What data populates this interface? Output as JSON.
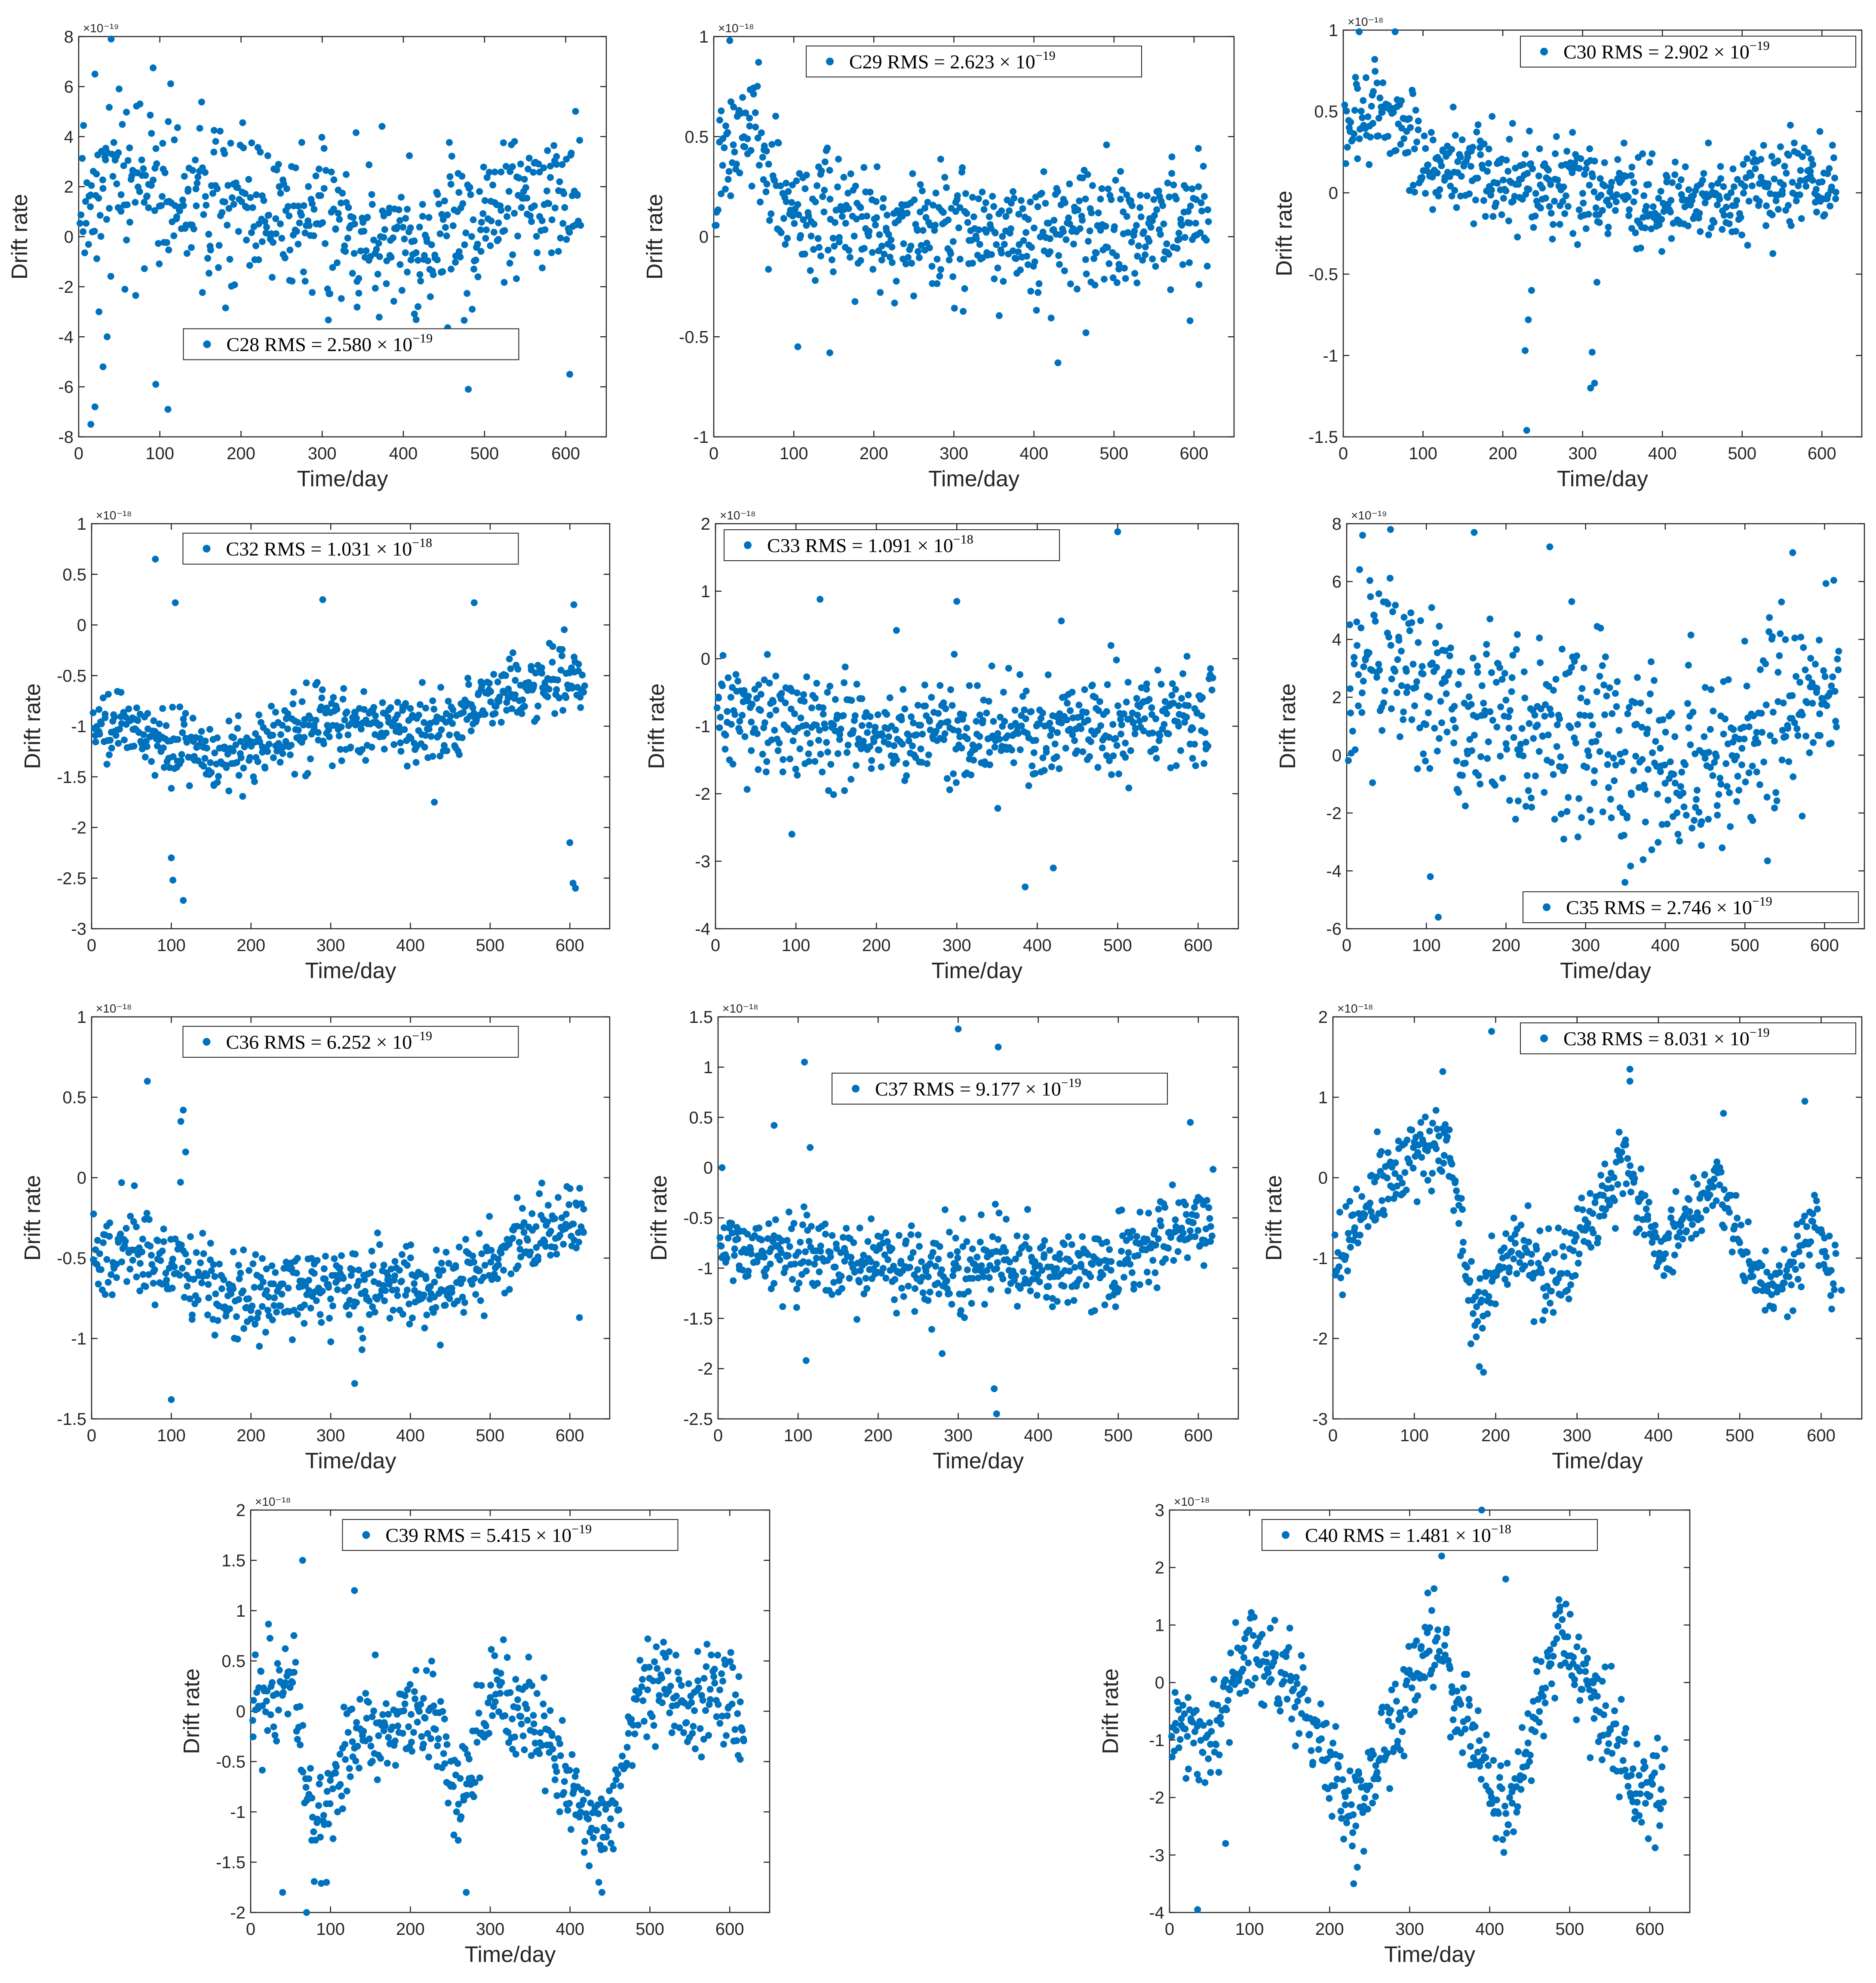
{
  "figure": {
    "xlabel": "Time/day",
    "ylabel": "Drift rate",
    "xticks": [
      "0",
      "100",
      "200",
      "300",
      "400",
      "500",
      "600"
    ],
    "marker_color": "#0072BD"
  },
  "chart_data": [
    {
      "id": "C28",
      "type": "scatter",
      "exponent_label": "×10⁻¹⁹",
      "exponent_base": "10",
      "exponent": "-19",
      "legend": {
        "text": "C28 RMS = 2.580 × 10",
        "sup": "−19",
        "position": "lower-center"
      },
      "xlim": [
        0,
        650
      ],
      "ylim": [
        -8,
        8
      ],
      "yticks": [
        "-8",
        "-6",
        "-4",
        "-2",
        "0",
        "2",
        "4",
        "6",
        "8"
      ],
      "model": {
        "base": [
          [
            0,
            1.5
          ],
          [
            60,
            2.2
          ],
          [
            150,
            1.5
          ],
          [
            250,
            0.8
          ],
          [
            350,
            0.2
          ],
          [
            420,
            -0.5
          ],
          [
            500,
            0.8
          ],
          [
            600,
            2.0
          ],
          [
            620,
            1.9
          ]
        ],
        "noise": 1.9
      },
      "outliers": [
        [
          15,
          -7.5
        ],
        [
          20,
          -6.8
        ],
        [
          30,
          -5.2
        ],
        [
          25,
          -3.0
        ],
        [
          35,
          -4.0
        ],
        [
          40,
          7.9
        ],
        [
          20,
          6.5
        ],
        [
          480,
          -6.1
        ],
        [
          605,
          -5.5
        ],
        [
          95,
          -5.9
        ],
        [
          110,
          -6.9
        ]
      ]
    },
    {
      "id": "C29",
      "type": "scatter",
      "exponent_label": "×10⁻¹⁸",
      "exponent_base": "10",
      "exponent": "-18",
      "legend": {
        "text": "C29 RMS = 2.623 × 10",
        "sup": "−19",
        "position": "top-center"
      },
      "xlim": [
        0,
        650
      ],
      "ylim": [
        -1,
        1
      ],
      "yticks": [
        "-1",
        "-0.5",
        "0",
        "0.5",
        "1"
      ],
      "model": {
        "base": [
          [
            0,
            0.2
          ],
          [
            30,
            0.6
          ],
          [
            60,
            0.4
          ],
          [
            100,
            0.15
          ],
          [
            200,
            0.05
          ],
          [
            400,
            0.0
          ],
          [
            620,
            0.1
          ]
        ],
        "noise": 0.18
      },
      "outliers": [
        [
          20,
          0.98
        ],
        [
          105,
          -0.55
        ],
        [
          145,
          -0.58
        ],
        [
          430,
          -0.63
        ],
        [
          465,
          -0.48
        ],
        [
          595,
          -0.42
        ]
      ]
    },
    {
      "id": "C30",
      "type": "scatter",
      "exponent_label": "×10⁻¹⁸",
      "exponent_base": "10",
      "exponent": "-18",
      "legend": {
        "text": "C30 RMS = 2.902 × 10",
        "sup": "−19",
        "position": "top-right"
      },
      "xlim": [
        0,
        650
      ],
      "ylim": [
        -1.5,
        1
      ],
      "yticks": [
        "-1.5",
        "-1",
        "-0.5",
        "0",
        "0.5",
        "1"
      ],
      "model": {
        "base": [
          [
            0,
            0.4
          ],
          [
            50,
            0.5
          ],
          [
            100,
            0.2
          ],
          [
            200,
            0.05
          ],
          [
            400,
            -0.05
          ],
          [
            500,
            0.0
          ],
          [
            620,
            0.1
          ]
        ],
        "noise": 0.17
      },
      "outliers": [
        [
          230,
          -1.46
        ],
        [
          228,
          -0.97
        ],
        [
          232,
          -0.78
        ],
        [
          236,
          -0.6
        ],
        [
          310,
          -1.2
        ],
        [
          315,
          -1.17
        ],
        [
          312,
          -0.98
        ],
        [
          318,
          -0.55
        ],
        [
          20,
          0.99
        ],
        [
          65,
          0.99
        ]
      ]
    },
    {
      "id": "C32",
      "type": "scatter",
      "exponent_label": "×10⁻¹⁸",
      "exponent_base": "10",
      "exponent": "-18",
      "legend": {
        "text": "C32 RMS = 1.031 × 10",
        "sup": "−18",
        "position": "top-center"
      },
      "xlim": [
        0,
        650
      ],
      "ylim": [
        -3,
        1
      ],
      "yticks": [
        "-3",
        "-2.5",
        "-2",
        "-1.5",
        "-1",
        "-0.5",
        "0",
        "0.5",
        "1"
      ],
      "model": {
        "base": [
          [
            0,
            -1.0
          ],
          [
            100,
            -1.15
          ],
          [
            150,
            -1.3
          ],
          [
            300,
            -1.0
          ],
          [
            450,
            -1.0
          ],
          [
            500,
            -0.7
          ],
          [
            600,
            -0.5
          ],
          [
            620,
            -0.6
          ]
        ],
        "noise": 0.2
      },
      "outliers": [
        [
          100,
          -2.3
        ],
        [
          102,
          -2.52
        ],
        [
          115,
          -2.72
        ],
        [
          600,
          -2.15
        ],
        [
          604,
          -2.55
        ],
        [
          607,
          -2.6
        ],
        [
          80,
          0.65
        ],
        [
          105,
          0.22
        ],
        [
          290,
          0.25
        ],
        [
          480,
          0.22
        ],
        [
          605,
          0.2
        ],
        [
          430,
          -1.75
        ]
      ]
    },
    {
      "id": "C33",
      "type": "scatter",
      "exponent_label": "×10⁻¹⁸",
      "exponent_base": "10",
      "exponent": "-18",
      "legend": {
        "text": "C33 RMS = 1.091 × 10",
        "sup": "−18",
        "position": "top-left"
      },
      "xlim": [
        0,
        650
      ],
      "ylim": [
        -4,
        2
      ],
      "yticks": [
        "-4",
        "-3",
        "-2",
        "-1",
        "0",
        "1",
        "2"
      ],
      "model": {
        "base": [
          [
            0,
            -0.7
          ],
          [
            100,
            -1.0
          ],
          [
            300,
            -1.1
          ],
          [
            500,
            -1.0
          ],
          [
            620,
            -0.7
          ]
        ],
        "noise": 0.45
      },
      "outliers": [
        [
          500,
          1.88
        ],
        [
          130,
          0.88
        ],
        [
          300,
          0.85
        ],
        [
          225,
          0.42
        ],
        [
          430,
          0.56
        ],
        [
          385,
          -3.38
        ],
        [
          420,
          -3.1
        ],
        [
          95,
          -2.6
        ]
      ]
    },
    {
      "id": "C35",
      "type": "scatter",
      "exponent_label": "×10⁻¹⁹",
      "exponent_base": "10",
      "exponent": "-19",
      "legend": {
        "text": "C35 RMS = 2.746 × 10",
        "sup": "−19",
        "position": "bottom-right"
      },
      "xlim": [
        0,
        650
      ],
      "ylim": [
        -6,
        8
      ],
      "yticks": [
        "-6",
        "-4",
        "-2",
        "0",
        "2",
        "4",
        "6",
        "8"
      ],
      "model": {
        "base": [
          [
            0,
            2.5
          ],
          [
            50,
            3.5
          ],
          [
            150,
            1.5
          ],
          [
            300,
            0.5
          ],
          [
            450,
            -0.5
          ],
          [
            500,
            0.5
          ],
          [
            600,
            2.0
          ],
          [
            620,
            2.0
          ]
        ],
        "noise": 1.9
      },
      "outliers": [
        [
          115,
          -5.6
        ],
        [
          105,
          -4.2
        ],
        [
          55,
          7.8
        ],
        [
          160,
          7.7
        ],
        [
          20,
          7.6
        ],
        [
          255,
          7.2
        ],
        [
          560,
          7.0
        ]
      ]
    },
    {
      "id": "C36",
      "type": "scatter",
      "exponent_label": "×10⁻¹⁸",
      "exponent_base": "10",
      "exponent": "-18",
      "legend": {
        "text": "C36 RMS = 6.252 × 10",
        "sup": "−19",
        "position": "top-center"
      },
      "xlim": [
        0,
        650
      ],
      "ylim": [
        -1.5,
        1
      ],
      "yticks": [
        "-1.5",
        "-1",
        "-0.5",
        "0",
        "0.5",
        "1"
      ],
      "model": {
        "base": [
          [
            0,
            -0.45
          ],
          [
            100,
            -0.5
          ],
          [
            200,
            -0.75
          ],
          [
            300,
            -0.65
          ],
          [
            450,
            -0.7
          ],
          [
            550,
            -0.35
          ],
          [
            620,
            -0.3
          ]
        ],
        "noise": 0.16
      },
      "outliers": [
        [
          70,
          0.6
        ],
        [
          115,
          0.42
        ],
        [
          112,
          0.35
        ],
        [
          118,
          0.16
        ],
        [
          100,
          -1.38
        ],
        [
          330,
          -1.28
        ],
        [
          612,
          -0.87
        ]
      ]
    },
    {
      "id": "C37",
      "type": "scatter",
      "exponent_label": "×10⁻¹⁸",
      "exponent_base": "10",
      "exponent": "-18",
      "legend": {
        "text": "C37 RMS = 9.177 × 10",
        "sup": "−19",
        "position": "upper-center"
      },
      "xlim": [
        0,
        650
      ],
      "ylim": [
        -2.5,
        1.5
      ],
      "yticks": [
        "-2.5",
        "-2",
        "-1.5",
        "-1",
        "-0.5",
        "0",
        "0.5",
        "1",
        "1.5"
      ],
      "model": {
        "base": [
          [
            0,
            -0.8
          ],
          [
            100,
            -0.9
          ],
          [
            300,
            -1.0
          ],
          [
            480,
            -1.0
          ],
          [
            600,
            -0.55
          ],
          [
            620,
            -0.55
          ]
        ],
        "noise": 0.24
      },
      "outliers": [
        [
          300,
          1.38
        ],
        [
          350,
          1.2
        ],
        [
          108,
          1.05
        ],
        [
          115,
          0.2
        ],
        [
          5,
          0.0
        ],
        [
          70,
          0.42
        ],
        [
          590,
          0.45
        ],
        [
          345,
          -2.2
        ],
        [
          348,
          -2.45
        ],
        [
          280,
          -1.85
        ],
        [
          110,
          -1.92
        ]
      ]
    },
    {
      "id": "C38",
      "type": "scatter",
      "exponent_label": "×10⁻¹⁸",
      "exponent_base": "10",
      "exponent": "-18",
      "legend": {
        "text": "C38 RMS = 8.031 × 10",
        "sup": "−19",
        "position": "top-right"
      },
      "xlim": [
        0,
        650
      ],
      "ylim": [
        -3,
        2
      ],
      "yticks": [
        "-3",
        "-2",
        "-1",
        "0",
        "1",
        "2"
      ],
      "model": {
        "base": [
          [
            0,
            -1.2
          ],
          [
            30,
            -0.5
          ],
          [
            100,
            0.3
          ],
          [
            140,
            0.5
          ],
          [
            175,
            -1.7
          ],
          [
            220,
            -0.8
          ],
          [
            270,
            -1.3
          ],
          [
            360,
            0.2
          ],
          [
            400,
            -0.9
          ],
          [
            420,
            -0.7
          ],
          [
            470,
            0.0
          ],
          [
            520,
            -1.3
          ],
          [
            560,
            -1.2
          ],
          [
            590,
            -0.6
          ],
          [
            620,
            -1.3
          ]
        ],
        "noise": 0.28
      },
      "outliers": [
        [
          195,
          1.82
        ],
        [
          365,
          1.35
        ],
        [
          365,
          1.2
        ],
        [
          580,
          0.95
        ],
        [
          480,
          0.8
        ],
        [
          135,
          1.32
        ],
        [
          180,
          -2.35
        ],
        [
          185,
          -2.42
        ],
        [
          625,
          -1.4
        ]
      ]
    },
    {
      "id": "C39",
      "type": "scatter",
      "exponent_label": "×10⁻¹⁸",
      "exponent_base": "10",
      "exponent": "-18",
      "legend": {
        "text": "C39 RMS = 5.415 × 10",
        "sup": "−19",
        "position": "top-center"
      },
      "xlim": [
        0,
        650
      ],
      "ylim": [
        -2,
        2
      ],
      "yticks": [
        "-2",
        "-1.5",
        "-1",
        "-0.5",
        "0",
        "0.5",
        "1",
        "1.5",
        "2"
      ],
      "model": {
        "base": [
          [
            0,
            0.0
          ],
          [
            50,
            0.3
          ],
          [
            80,
            -1.2
          ],
          [
            130,
            -0.3
          ],
          [
            230,
            0.0
          ],
          [
            260,
            -1.0
          ],
          [
            300,
            0.2
          ],
          [
            350,
            0.0
          ],
          [
            440,
            -1.3
          ],
          [
            490,
            0.2
          ],
          [
            600,
            0.1
          ],
          [
            620,
            -0.5
          ]
        ],
        "noise": 0.27
      },
      "outliers": [
        [
          65,
          1.5
        ],
        [
          130,
          1.2
        ],
        [
          70,
          -2.0
        ],
        [
          270,
          -1.8
        ],
        [
          440,
          -1.8
        ],
        [
          40,
          -1.8
        ],
        [
          95,
          -1.7
        ]
      ]
    },
    {
      "id": "C40",
      "type": "scatter",
      "exponent_label": "×10⁻¹⁸",
      "exponent_base": "10",
      "exponent": "-18",
      "legend": {
        "text": "C40 RMS = 1.481 × 10",
        "sup": "−18",
        "position": "top-center"
      },
      "xlim": [
        0,
        650
      ],
      "ylim": [
        -4,
        3
      ],
      "yticks": [
        "-4",
        "-3",
        "-2",
        "-1",
        "0",
        "1",
        "2",
        "3"
      ],
      "model": {
        "base": [
          [
            0,
            -0.5
          ],
          [
            50,
            -1.3
          ],
          [
            100,
            0.7
          ],
          [
            150,
            0.0
          ],
          [
            230,
            -2.3
          ],
          [
            330,
            0.8
          ],
          [
            420,
            -2.3
          ],
          [
            490,
            0.8
          ],
          [
            600,
            -2.3
          ],
          [
            620,
            -1.5
          ]
        ],
        "noise": 0.5
      },
      "outliers": [
        [
          390,
          3.0
        ],
        [
          340,
          2.2
        ],
        [
          420,
          1.8
        ],
        [
          35,
          -3.95
        ],
        [
          230,
          -3.5
        ],
        [
          70,
          -2.8
        ]
      ]
    }
  ]
}
